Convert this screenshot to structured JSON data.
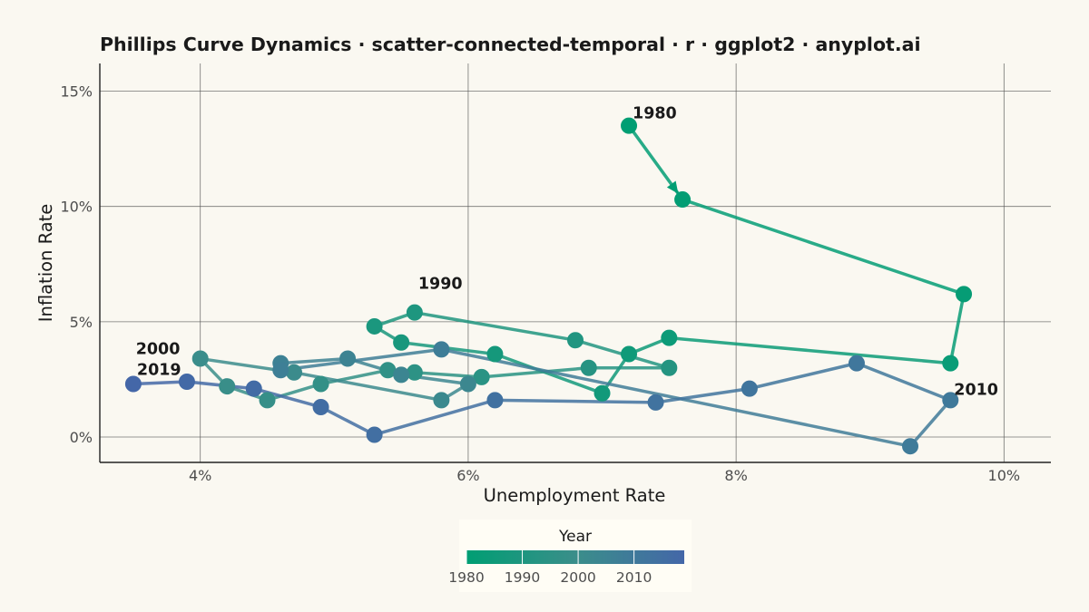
{
  "chart_data": {
    "type": "scatter",
    "title": "Phillips Curve Dynamics · scatter-connected-temporal · r · ggplot2 · anyplot.ai",
    "xlabel": "Unemployment Rate",
    "ylabel": "Inflation Rate",
    "xlim": [
      3.25,
      10.35
    ],
    "ylim": [
      -1.1,
      16.2
    ],
    "x_ticks": [
      4,
      6,
      8,
      10
    ],
    "x_tick_labels": [
      "4%",
      "6%",
      "8%",
      "10%"
    ],
    "y_ticks": [
      0,
      5,
      10,
      15
    ],
    "y_tick_labels": [
      "0%",
      "5%",
      "10%",
      "15%"
    ],
    "grid": true,
    "connected": true,
    "points": [
      {
        "year": 1980,
        "x": 7.2,
        "y": 13.5
      },
      {
        "year": 1981,
        "x": 7.6,
        "y": 10.3
      },
      {
        "year": 1982,
        "x": 9.7,
        "y": 6.2
      },
      {
        "year": 1983,
        "x": 9.6,
        "y": 3.2
      },
      {
        "year": 1984,
        "x": 7.5,
        "y": 4.3
      },
      {
        "year": 1985,
        "x": 7.2,
        "y": 3.6
      },
      {
        "year": 1986,
        "x": 7.0,
        "y": 1.9
      },
      {
        "year": 1987,
        "x": 6.2,
        "y": 3.6
      },
      {
        "year": 1988,
        "x": 5.5,
        "y": 4.1
      },
      {
        "year": 1989,
        "x": 5.3,
        "y": 4.8
      },
      {
        "year": 1990,
        "x": 5.6,
        "y": 5.4
      },
      {
        "year": 1991,
        "x": 6.8,
        "y": 4.2
      },
      {
        "year": 1992,
        "x": 7.5,
        "y": 3.0
      },
      {
        "year": 1993,
        "x": 6.9,
        "y": 3.0
      },
      {
        "year": 1994,
        "x": 6.1,
        "y": 2.6
      },
      {
        "year": 1995,
        "x": 5.6,
        "y": 2.8
      },
      {
        "year": 1996,
        "x": 5.4,
        "y": 2.9
      },
      {
        "year": 1997,
        "x": 4.9,
        "y": 2.3
      },
      {
        "year": 1998,
        "x": 4.5,
        "y": 1.6
      },
      {
        "year": 1999,
        "x": 4.2,
        "y": 2.2
      },
      {
        "year": 2000,
        "x": 4.0,
        "y": 3.4
      },
      {
        "year": 2001,
        "x": 4.7,
        "y": 2.8
      },
      {
        "year": 2002,
        "x": 5.8,
        "y": 1.6
      },
      {
        "year": 2003,
        "x": 6.0,
        "y": 2.3
      },
      {
        "year": 2004,
        "x": 5.5,
        "y": 2.7
      },
      {
        "year": 2005,
        "x": 5.1,
        "y": 3.4
      },
      {
        "year": 2006,
        "x": 4.6,
        "y": 3.2
      },
      {
        "year": 2007,
        "x": 4.6,
        "y": 2.9
      },
      {
        "year": 2008,
        "x": 5.8,
        "y": 3.8
      },
      {
        "year": 2009,
        "x": 9.3,
        "y": -0.4
      },
      {
        "year": 2010,
        "x": 9.6,
        "y": 1.6
      },
      {
        "year": 2011,
        "x": 8.9,
        "y": 3.2
      },
      {
        "year": 2012,
        "x": 8.1,
        "y": 2.1
      },
      {
        "year": 2013,
        "x": 7.4,
        "y": 1.5
      },
      {
        "year": 2014,
        "x": 6.2,
        "y": 1.6
      },
      {
        "year": 2015,
        "x": 5.3,
        "y": 0.1
      },
      {
        "year": 2016,
        "x": 4.9,
        "y": 1.3
      },
      {
        "year": 2017,
        "x": 4.4,
        "y": 2.1
      },
      {
        "year": 2018,
        "x": 3.9,
        "y": 2.4
      },
      {
        "year": 2019,
        "x": 3.5,
        "y": 2.3
      }
    ],
    "annotations": [
      {
        "label": "1980",
        "year": 1980
      },
      {
        "label": "1990",
        "year": 1990
      },
      {
        "label": "2000",
        "year": 2000
      },
      {
        "label": "2010",
        "year": 2010
      },
      {
        "label": "2019",
        "year": 2019
      }
    ],
    "legend": {
      "title": "Year",
      "placement": "bottom",
      "range": [
        1980,
        2019
      ],
      "breaks": [
        1980,
        1990,
        2000,
        2010
      ],
      "break_labels": [
        "1980",
        "1990",
        "2000",
        "2010"
      ]
    },
    "colors": {
      "background": "#FAF8F1",
      "grid": "#555555",
      "axis": "#222222",
      "color_low": "#009E73",
      "color_mid": "#3A8E8A",
      "color_high": "#4467A8",
      "legend_background": "#FFFDF5"
    }
  }
}
